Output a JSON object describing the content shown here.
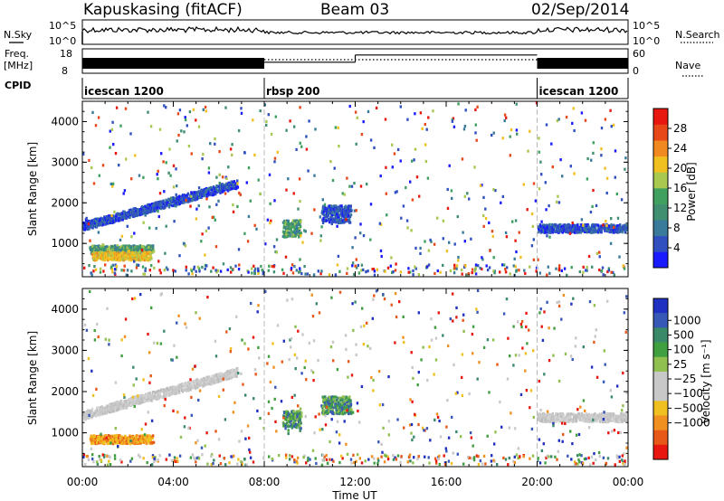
{
  "header": {
    "station": "Kapuskasing (fitACF)",
    "beam": "Beam 03",
    "date": "02/Sep/2014"
  },
  "strips": {
    "nsky_label": "N.Sky",
    "nsearch_label": "N.Search",
    "nsky_ticks": [
      "10^5",
      "10^0"
    ],
    "freq_label_line1": "Freq.",
    "freq_label_line2": "[MHz]",
    "freq_ticks": [
      "18",
      "8"
    ],
    "nave_label": "Nave",
    "nave_ticks": [
      "60",
      "0"
    ],
    "cpid_label": "CPID",
    "cpid_segments": [
      {
        "name": "icescan 1200",
        "start_h": 0,
        "end_h": 8
      },
      {
        "name": "rbsp 200",
        "start_h": 8,
        "end_h": 20
      },
      {
        "name": "icescan 1200",
        "start_h": 20,
        "end_h": 24
      }
    ],
    "nave_steps": [
      {
        "start_h": 8,
        "end_h": 12,
        "value": 28
      },
      {
        "start_h": 12,
        "end_h": 20,
        "value": 48
      }
    ]
  },
  "x_axis": {
    "label": "Time UT",
    "ticks": [
      "00:00",
      "04:00",
      "08:00",
      "12:00",
      "16:00",
      "20:00",
      "00:00"
    ]
  },
  "chart_data": [
    {
      "type": "heatmap",
      "panel": "power",
      "ylabel": "Slant Range [km]",
      "xlabel": "",
      "ylim": [
        180,
        4500
      ],
      "xlim_h": [
        0,
        24
      ],
      "yticks": [
        "1000",
        "2000",
        "3000",
        "4000"
      ],
      "ytick_values": [
        1000,
        2000,
        3000,
        4000
      ],
      "colorbar": {
        "label": "Power [dB]",
        "ticks": [
          "4",
          "8",
          "12",
          "16",
          "20",
          "24",
          "28"
        ],
        "colors": [
          "#1a1aff",
          "#3050c0",
          "#3a7a9a",
          "#3f8f70",
          "#40a060",
          "#a8c850",
          "#f0c020",
          "#f08a20",
          "#e84818",
          "#e81810"
        ]
      },
      "features": [
        {
          "desc": "band",
          "start_h": 0.3,
          "end_h": 3.1,
          "range_km": 880,
          "level": "green"
        },
        {
          "desc": "band",
          "start_h": 0.4,
          "end_h": 3.0,
          "range_km": 720,
          "level": "orange"
        },
        {
          "desc": "rising band",
          "start_h": 0.0,
          "end_h": 6.8,
          "range_km_start": 1450,
          "range_km_end": 2500,
          "level": "blue"
        },
        {
          "desc": "cluster",
          "start_h": 8.8,
          "end_h": 9.6,
          "range_km": 1400,
          "level": "green"
        },
        {
          "desc": "cluster",
          "start_h": 10.5,
          "end_h": 11.8,
          "range_km": 1750,
          "level": "blue"
        },
        {
          "desc": "band",
          "start_h": 20.0,
          "end_h": 24.0,
          "range_km": 1400,
          "level": "blue"
        }
      ]
    },
    {
      "type": "heatmap",
      "panel": "velocity",
      "ylabel": "Slant Range [km]",
      "xlabel": "Time UT",
      "ylim": [
        180,
        4500
      ],
      "xlim_h": [
        0,
        24
      ],
      "yticks": [
        "1000",
        "2000",
        "3000",
        "4000"
      ],
      "ytick_values": [
        1000,
        2000,
        3000,
        4000
      ],
      "colorbar": {
        "label": "Velocity [m s⁻¹]",
        "ticks": [
          "1000",
          "500",
          "100",
          "25",
          "−25",
          "−100",
          "−500",
          "−1000"
        ],
        "colors": [
          "#2030c0",
          "#3858b8",
          "#3a8a6a",
          "#40a040",
          "#90c050",
          "#c8c8c8",
          "#c8c8c8",
          "#f0c020",
          "#f09020",
          "#e85818",
          "#e81810"
        ]
      },
      "features": [
        {
          "desc": "band",
          "start_h": 0.3,
          "end_h": 3.1,
          "range_km": 870,
          "level": "orange"
        },
        {
          "desc": "rising band",
          "start_h": 0.0,
          "end_h": 6.8,
          "range_km_start": 1450,
          "range_km_end": 2500,
          "level": "grey"
        },
        {
          "desc": "cluster",
          "start_h": 8.8,
          "end_h": 9.6,
          "range_km": 1350,
          "level": "green"
        },
        {
          "desc": "cluster",
          "start_h": 10.5,
          "end_h": 11.8,
          "range_km": 1700,
          "level": "green"
        },
        {
          "desc": "band",
          "start_h": 20.0,
          "end_h": 24.0,
          "range_km": 1400,
          "level": "grey"
        }
      ]
    }
  ]
}
